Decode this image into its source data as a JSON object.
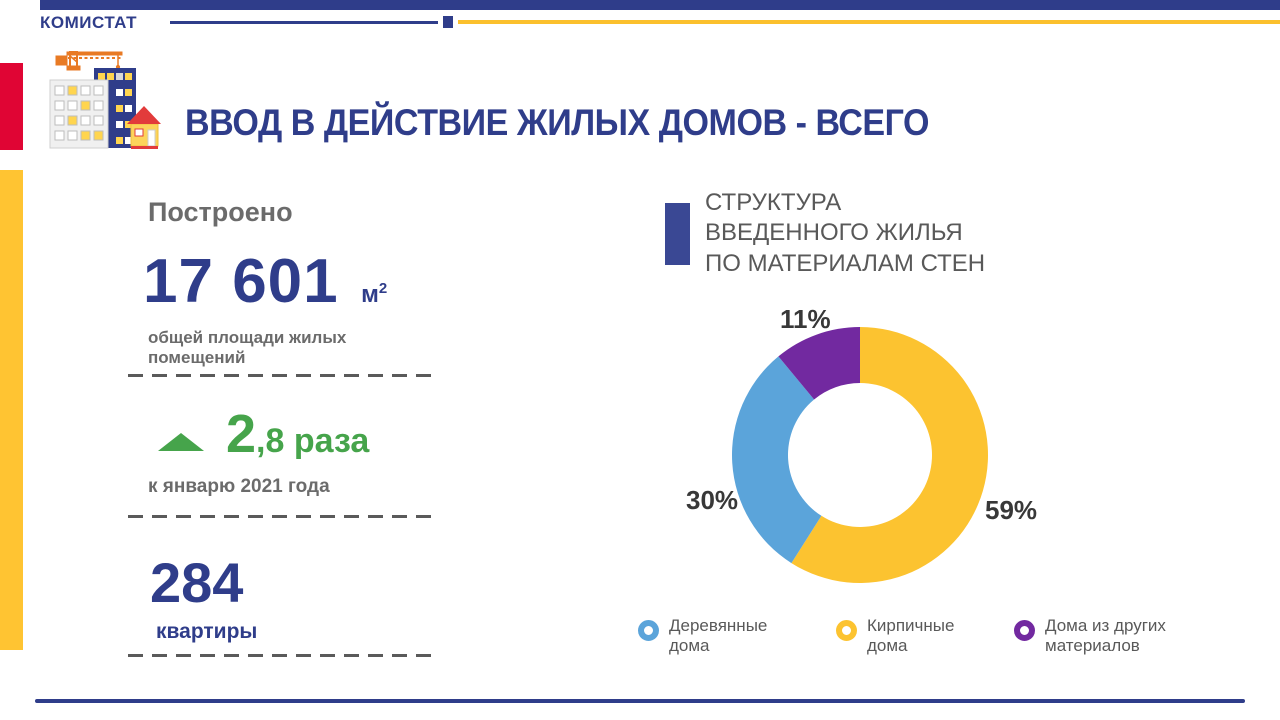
{
  "brand": {
    "name": "КОМИСТАТ"
  },
  "header": {
    "title": "ВВОД В ДЕЙСТВИЕ ЖИЛЫХ ДОМОВ - ВСЕГО"
  },
  "stats": {
    "built_label": "Построено",
    "area_value": "17 601",
    "area_unit_base": "м",
    "area_unit_exp": "2",
    "area_caption": "общей площади жилых помещений",
    "growth_value": "2",
    "growth_suffix": ",8 раза",
    "growth_caption": "к январю 2021 года",
    "apartments_value": "284",
    "apartments_label": "квартиры"
  },
  "chart_section": {
    "title_line1": "СТРУКТУРА",
    "title_line2": "ВВЕДЕННОГО ЖИЛЬЯ",
    "title_line3": "ПО МАТЕРИАЛАМ СТЕН"
  },
  "chart_data": {
    "type": "pie",
    "subtype": "donut",
    "title": "СТРУКТУРА ВВЕДЕННОГО ЖИЛЬЯ ПО МАТЕРИАЛАМ СТЕН",
    "start_angle_deg": -90,
    "direction": "clockwise",
    "legend_position": "bottom",
    "slices": [
      {
        "label": "Кирпичные дома",
        "value": 59,
        "data_label": "59%",
        "color": "#FCC330"
      },
      {
        "label": "Деревянные дома",
        "value": 30,
        "data_label": "30%",
        "color": "#5BA4DA"
      },
      {
        "label": "Дома из других материалов",
        "value": 11,
        "data_label": "11%",
        "color": "#7229A0"
      }
    ],
    "legend": [
      {
        "color": "#5BA4DA",
        "line1": "Деревянные",
        "line2": "дома"
      },
      {
        "color": "#FCC330",
        "line1": "Кирпичные",
        "line2": "дома"
      },
      {
        "color": "#7229A0",
        "line1": "Дома из других",
        "line2": "материалов"
      }
    ]
  },
  "colors": {
    "navy": "#2F3D8A",
    "accent_yellow": "#FBC02D",
    "edge_red": "#E00534",
    "edge_yellow": "#FFC432",
    "green": "#46A44B",
    "gray_text": "#6B6B6B",
    "chart_title_gray": "#595959"
  }
}
